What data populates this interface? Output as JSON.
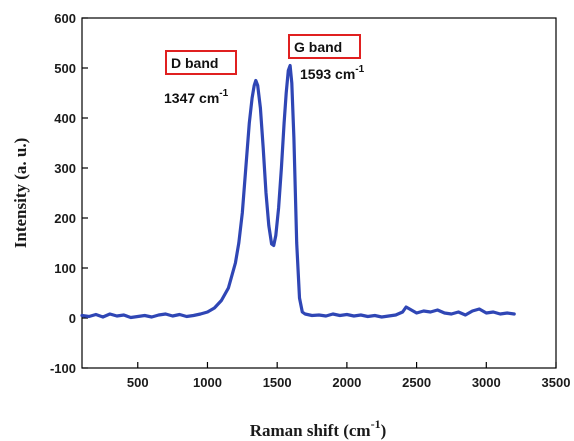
{
  "chart_data": {
    "type": "line",
    "xlabel": "Raman shift (cm",
    "xlabel_sup": "-1",
    "xlabel_close": ")",
    "ylabel": "Intensity (a. u.)",
    "xlim": [
      100,
      3500
    ],
    "ylim": [
      -100,
      600
    ],
    "xticks": [
      "500",
      "1000",
      "1500",
      "2000",
      "2500",
      "3000",
      "3500"
    ],
    "yticks": [
      "-100",
      "0",
      "100",
      "200",
      "300",
      "400",
      "500",
      "600"
    ],
    "xtick_values": [
      500,
      1000,
      1500,
      2000,
      2500,
      3000,
      3500
    ],
    "ytick_values": [
      -100,
      0,
      100,
      200,
      300,
      400,
      500,
      600
    ],
    "series_color": "#2f46b5",
    "series": [
      {
        "x": [
          100,
          150,
          200,
          250,
          300,
          350,
          400,
          450,
          500,
          550,
          600,
          650,
          700,
          750,
          800,
          850,
          900,
          950,
          1000,
          1050,
          1100,
          1150,
          1200,
          1225,
          1250,
          1275,
          1300,
          1320,
          1335,
          1347,
          1360,
          1380,
          1400,
          1420,
          1440,
          1460,
          1475,
          1490,
          1510,
          1530,
          1550,
          1565,
          1580,
          1593,
          1605,
          1620,
          1640,
          1660,
          1680,
          1700,
          1750,
          1800,
          1850,
          1900,
          1950,
          2000,
          2050,
          2100,
          2150,
          2200,
          2250,
          2300,
          2350,
          2400,
          2425,
          2450,
          2500,
          2550,
          2600,
          2650,
          2700,
          2750,
          2800,
          2850,
          2900,
          2950,
          3000,
          3050,
          3100,
          3150,
          3200
        ],
        "y": [
          5,
          3,
          7,
          2,
          8,
          4,
          6,
          1,
          3,
          5,
          2,
          6,
          8,
          4,
          7,
          3,
          5,
          8,
          12,
          20,
          35,
          60,
          110,
          150,
          210,
          300,
          390,
          440,
          465,
          475,
          465,
          420,
          340,
          250,
          185,
          148,
          145,
          165,
          220,
          300,
          390,
          450,
          495,
          505,
          470,
          360,
          150,
          40,
          12,
          8,
          5,
          6,
          4,
          8,
          5,
          7,
          4,
          6,
          3,
          5,
          2,
          4,
          6,
          12,
          22,
          18,
          10,
          14,
          12,
          16,
          10,
          8,
          12,
          6,
          14,
          18,
          10,
          12,
          8,
          10,
          8
        ]
      }
    ],
    "annotations": [
      {
        "label": "D band",
        "peak": "1347 cm",
        "peak_sup": "-1",
        "box_color": "#e02020"
      },
      {
        "label": "G band",
        "peak": "1593 cm",
        "peak_sup": "-1",
        "box_color": "#e02020"
      }
    ]
  }
}
